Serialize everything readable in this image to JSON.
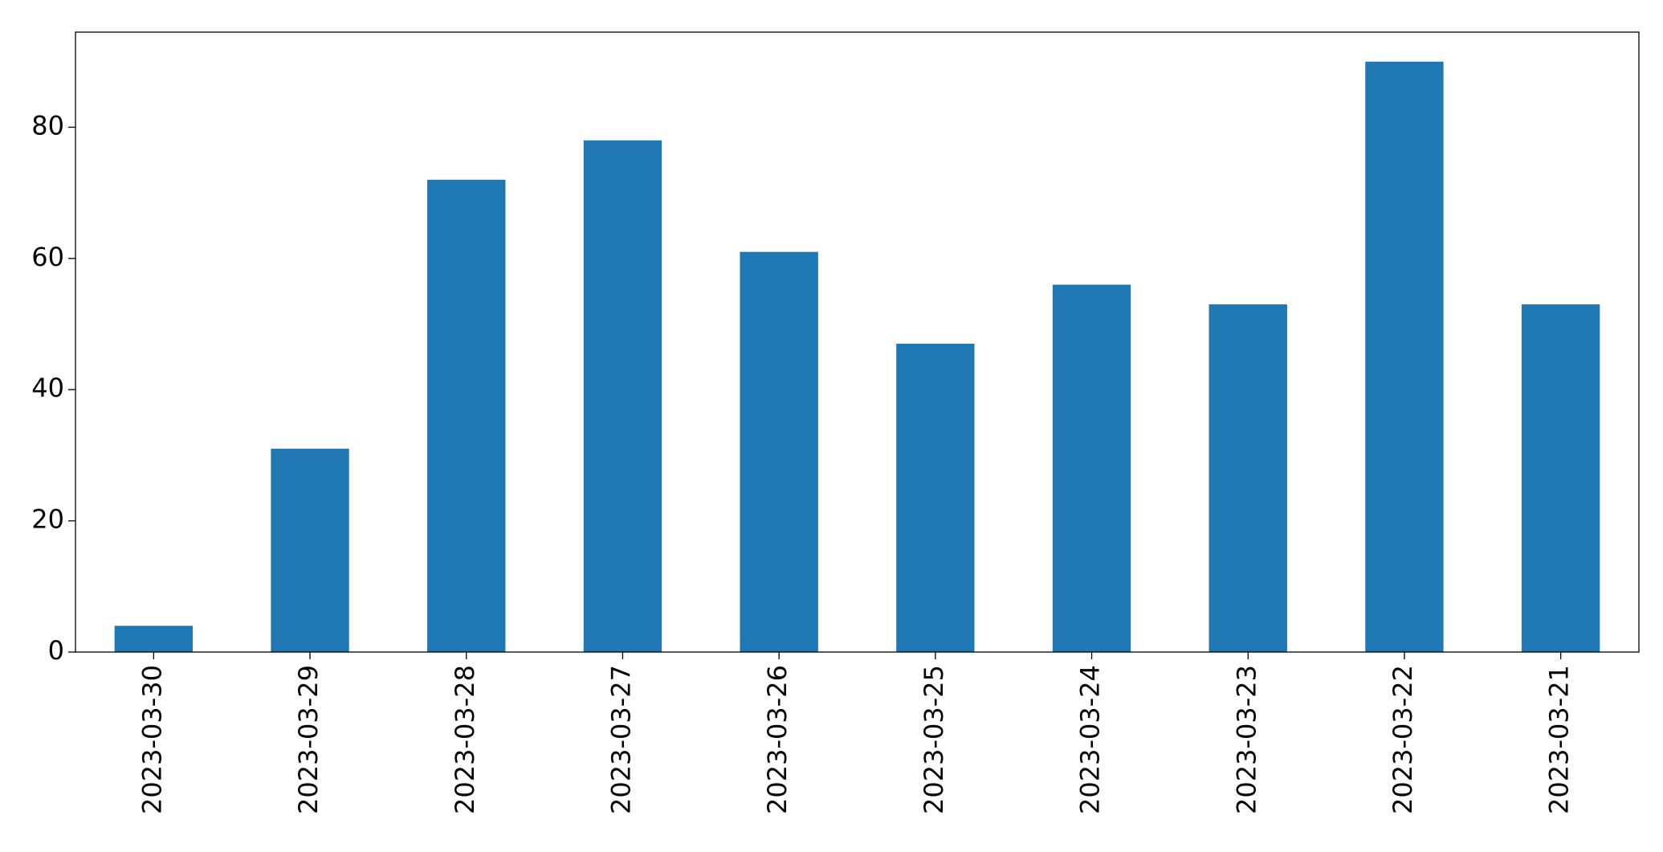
{
  "chart_data": {
    "type": "bar",
    "categories": [
      "2023-03-30",
      "2023-03-29",
      "2023-03-28",
      "2023-03-27",
      "2023-03-26",
      "2023-03-25",
      "2023-03-24",
      "2023-03-23",
      "2023-03-22",
      "2023-03-21"
    ],
    "values": [
      4,
      31,
      72,
      78,
      61,
      47,
      56,
      53,
      90,
      53
    ],
    "color": "#1f77b4",
    "ylim": [
      0,
      94.5
    ],
    "yticks": [
      0,
      20,
      40,
      60,
      80
    ],
    "grid": false
  }
}
